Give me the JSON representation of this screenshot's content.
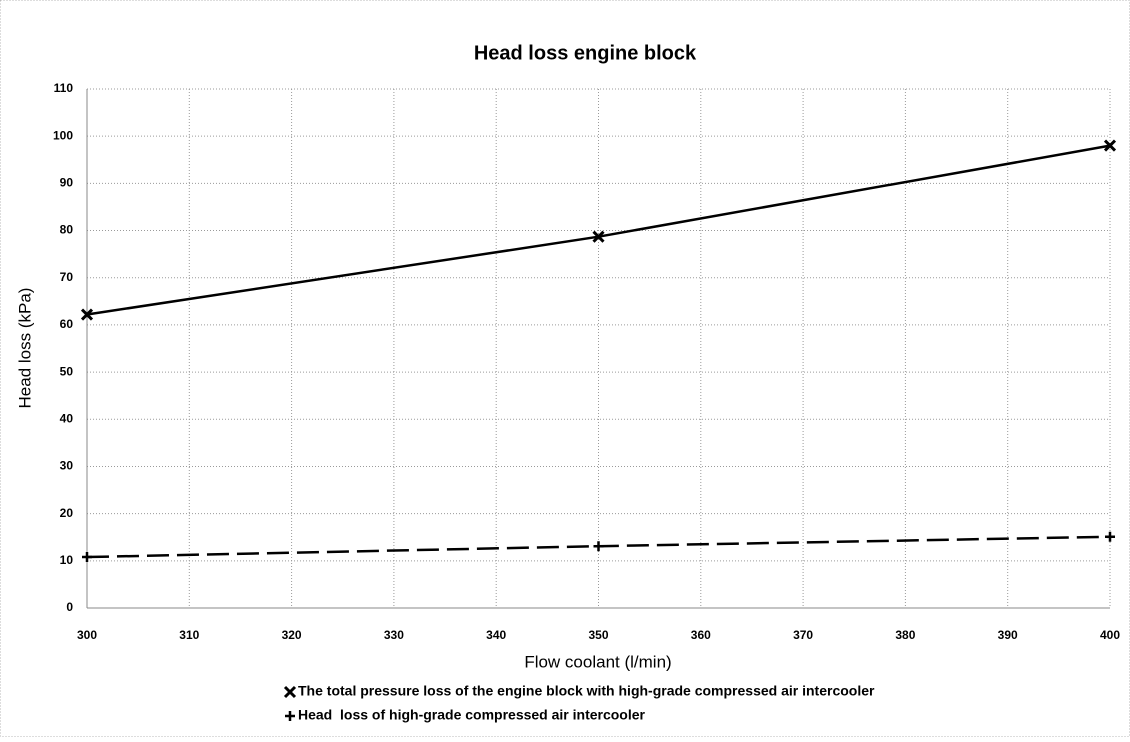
{
  "chart_data": {
    "type": "line",
    "title": "Head loss engine block",
    "x_label": "Flow coolant (l/min)",
    "y_label": "Head loss (kPa)",
    "x": [
      300,
      350,
      400
    ],
    "series": [
      {
        "name": "The total pressure loss of the engine block with high-grade compressed air intercooler",
        "color": "#000000",
        "line_style": "solid",
        "marker": "x",
        "values": [
          62.2,
          78.7,
          98
        ]
      },
      {
        "name": "Head  loss of high-grade compressed air intercooler",
        "color": "#000000",
        "line_style": "dashed",
        "marker": "+",
        "values": [
          10.8,
          13.1,
          15.1
        ]
      }
    ],
    "xlim": [
      300,
      400
    ],
    "ylim": [
      0,
      110
    ],
    "xticks": [
      300,
      310,
      320,
      330,
      340,
      350,
      360,
      370,
      380,
      390,
      400
    ],
    "yticks": [
      0,
      10,
      20,
      30,
      40,
      50,
      60,
      70,
      80,
      90,
      100,
      110
    ],
    "grid": true,
    "legend": "bottom"
  }
}
